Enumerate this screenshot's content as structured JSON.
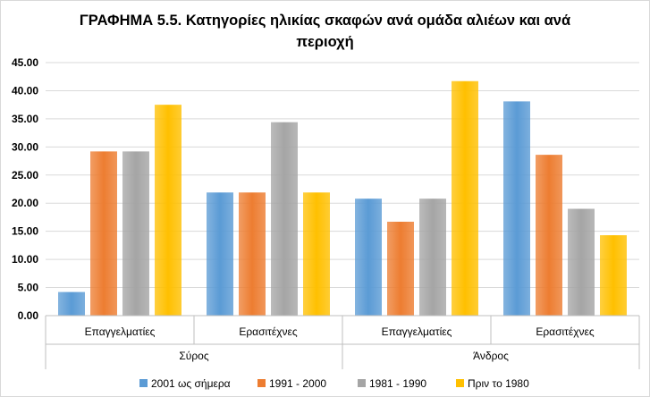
{
  "chart_data": {
    "type": "bar",
    "title": "ΓΡΑΦΗΜΑ 5.5. Κατηγορίες ηλικίας σκαφών ανά ομάδα αλιέων και ανά περιοχή",
    "title_line1": "ΓΡΑΦΗΜΑ 5.5. Κατηγορίες ηλικίας σκαφών ανά ομάδα αλιέων και ανά",
    "title_line2": "περιοχή",
    "categories": [
      "Επαγγελματίες",
      "Ερασιτέχνες",
      "Επαγγελματίες",
      "Ερασιτέχνες"
    ],
    "groups": [
      {
        "label": "Σύρος",
        "span": [
          0,
          1
        ]
      },
      {
        "label": "Άνδρος",
        "span": [
          2,
          3
        ]
      }
    ],
    "series": [
      {
        "name": "2001 ως σήμερα",
        "color": "#5b9bd5",
        "values": [
          4.2,
          21.9,
          20.8,
          38.1
        ]
      },
      {
        "name": "1991 - 2000",
        "color": "#ed7d31",
        "values": [
          29.2,
          21.9,
          16.7,
          28.6
        ]
      },
      {
        "name": "1981 - 1990",
        "color": "#a5a5a5",
        "values": [
          29.2,
          34.4,
          20.8,
          19.0
        ]
      },
      {
        "name": "Πριν το 1980",
        "color": "#ffc000",
        "values": [
          37.5,
          21.9,
          41.7,
          14.3
        ]
      }
    ],
    "ylim": [
      0,
      45
    ],
    "yticks": [
      "0.00",
      "5.00",
      "10.00",
      "15.00",
      "20.00",
      "25.00",
      "30.00",
      "35.00",
      "40.00",
      "45.00"
    ],
    "grid": true,
    "legend_position": "bottom"
  }
}
